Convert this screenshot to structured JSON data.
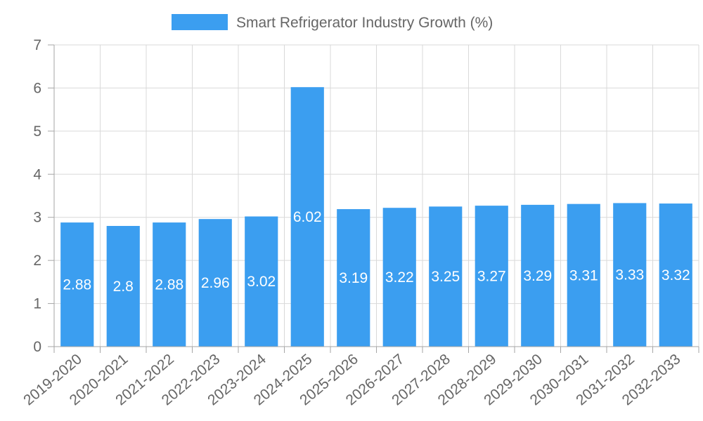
{
  "chart_data": {
    "type": "bar",
    "title": "",
    "xlabel": "",
    "ylabel": "",
    "categories": [
      "2019-2020",
      "2020-2021",
      "2021-2022",
      "2022-2023",
      "2023-2024",
      "2024-2025",
      "2025-2026",
      "2026-2027",
      "2027-2028",
      "2028-2029",
      "2029-2030",
      "2030-2031",
      "2031-2032",
      "2032-2033"
    ],
    "series": [
      {
        "name": "Smart Refrigerator Industry Growth (%)",
        "values": [
          2.88,
          2.8,
          2.88,
          2.96,
          3.02,
          6.02,
          3.19,
          3.22,
          3.25,
          3.27,
          3.29,
          3.31,
          3.33,
          3.32
        ],
        "color": "#3b9ef0"
      }
    ],
    "ylim": [
      0,
      7
    ],
    "yticks": [
      "0",
      "1",
      "2",
      "3",
      "4",
      "5",
      "6",
      "7"
    ],
    "data_labels": [
      "2.88",
      "2.8",
      "2.88",
      "2.96",
      "3.02",
      "6.02",
      "3.19",
      "3.22",
      "3.25",
      "3.27",
      "3.29",
      "3.31",
      "3.33",
      "3.32"
    ],
    "grid": true,
    "legend_position": "top-center"
  }
}
